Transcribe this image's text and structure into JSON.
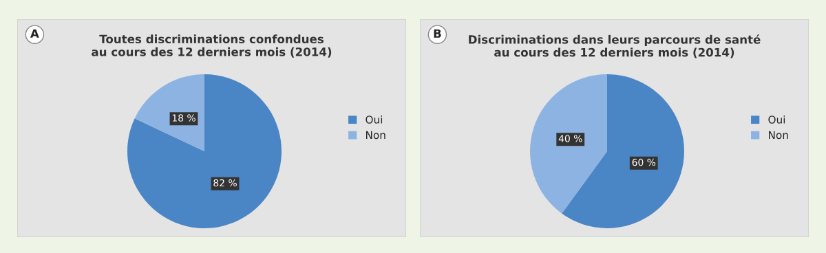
{
  "chart_data": [
    {
      "type": "pie",
      "title": "Toutes discriminations confondues\nau cours des 12 derniers mois (2014)",
      "annotations": [
        "A"
      ],
      "categories": [
        "Oui",
        "Non"
      ],
      "values": [
        82,
        18
      ],
      "colors": [
        "#4a86c5",
        "#8db3e2"
      ],
      "value_labels": [
        "82 %",
        "18 %"
      ],
      "legend": "right"
    },
    {
      "type": "pie",
      "title": "Discriminations dans leurs parcours de santé\nau cours des 12 derniers mois (2014)",
      "annotations": [
        "B"
      ],
      "categories": [
        "Oui",
        "Non"
      ],
      "values": [
        60,
        40
      ],
      "colors": [
        "#4a86c5",
        "#8db3e2"
      ],
      "value_labels": [
        "60 %",
        "40 %"
      ],
      "legend": "right"
    }
  ]
}
